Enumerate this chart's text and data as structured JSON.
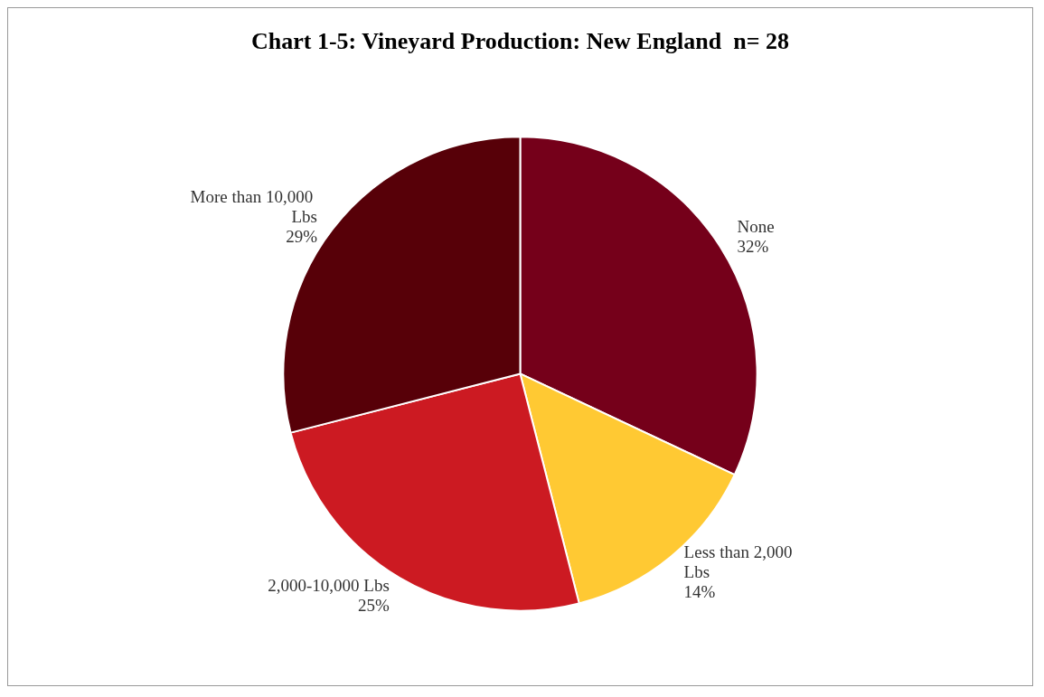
{
  "chart_data": {
    "type": "pie",
    "title": "Chart 1-5: Vineyard Production: New England  n= 28",
    "categories": [
      "None",
      "Less than 2,000 Lbs",
      "2,000-10,000 Lbs",
      "More than 10,000 Lbs"
    ],
    "values": [
      32,
      14,
      25,
      29
    ],
    "value_labels": [
      "32%",
      "14%",
      "25%",
      "29%"
    ],
    "colors": [
      "#75001a",
      "#ffc933",
      "#cc1a22",
      "#570008"
    ],
    "legend": false
  }
}
